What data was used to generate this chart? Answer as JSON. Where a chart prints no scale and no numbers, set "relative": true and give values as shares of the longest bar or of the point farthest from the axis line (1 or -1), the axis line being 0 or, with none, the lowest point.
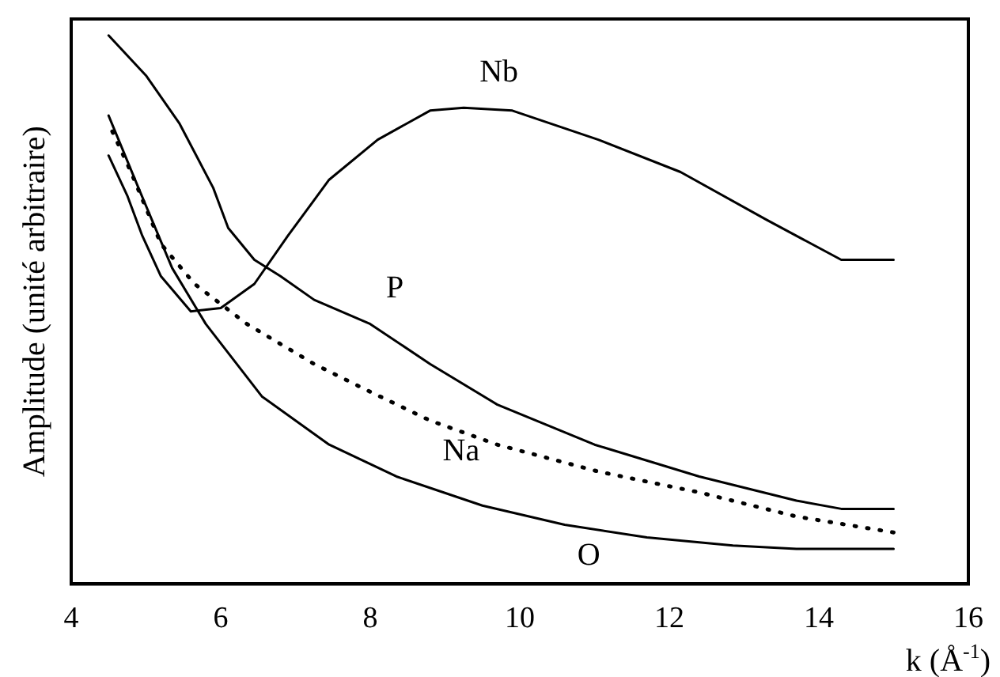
{
  "chart_data": {
    "type": "line",
    "relative": true,
    "xlabel": "k (Å$^{-1}$)",
    "ylabel": "Amplitude (unité arbitraire)",
    "xlim": [
      4,
      16
    ],
    "xticks": [
      4,
      6,
      8,
      10,
      12,
      14,
      16
    ],
    "grid": false,
    "legend": false,
    "marker": "none",
    "series": [
      {
        "name": "Nb",
        "color": "#000000",
        "x": [
          4.5,
          4.75,
          4.95,
          5.2,
          5.6,
          6.0,
          6.45,
          6.9,
          7.45,
          8.1,
          8.8,
          9.25,
          9.9,
          11.05,
          12.15,
          13.3,
          14.3,
          15
        ],
        "values": [
          0.781,
          0.708,
          0.635,
          0.561,
          0.497,
          0.503,
          0.547,
          0.635,
          0.737,
          0.81,
          0.863,
          0.868,
          0.863,
          0.81,
          0.751,
          0.664,
          0.591,
          0.591
        ]
      },
      {
        "name": "P",
        "color": "#000000",
        "x": [
          4.5,
          5.0,
          5.45,
          5.9,
          6.1,
          6.45,
          6.8,
          7.25,
          8.0,
          8.8,
          9.7,
          11.0,
          12.4,
          13.7,
          14.3,
          15
        ],
        "values": [
          1,
          0.927,
          0.839,
          0.722,
          0.649,
          0.591,
          0.561,
          0.518,
          0.474,
          0.401,
          0.327,
          0.254,
          0.196,
          0.152,
          0.137,
          0.137
        ]
      },
      {
        "name": "Na",
        "color": "#000000",
        "line_style": "dotted",
        "x": [
          4.55,
          4.8,
          5.2,
          5.65,
          6.35,
          7.25,
          7.9,
          8.8,
          9.7,
          11.05,
          12.4,
          13.7,
          15
        ],
        "values": [
          0.825,
          0.751,
          0.62,
          0.547,
          0.474,
          0.401,
          0.357,
          0.298,
          0.254,
          0.205,
          0.167,
          0.123,
          0.094
        ]
      },
      {
        "name": "O",
        "color": "#000000",
        "x": [
          4.5,
          4.9,
          5.35,
          5.8,
          6.55,
          7.45,
          8.35,
          9.5,
          10.6,
          11.7,
          12.85,
          13.7,
          15
        ],
        "values": [
          0.854,
          0.722,
          0.576,
          0.474,
          0.342,
          0.254,
          0.196,
          0.143,
          0.108,
          0.085,
          0.07,
          0.064,
          0.064
        ]
      }
    ]
  }
}
